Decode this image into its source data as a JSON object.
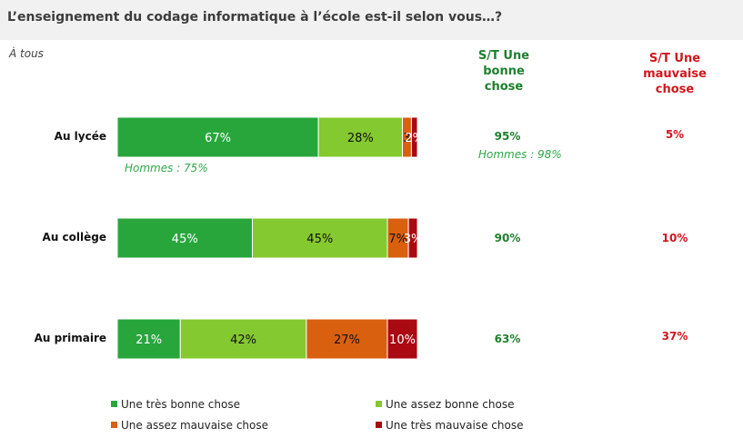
{
  "title": "L’enseignement du codage informatique à l’école est-il selon vous…?",
  "subtitle": "À tous",
  "columns": {
    "good_header": [
      "S/T Une",
      "bonne",
      "chose"
    ],
    "bad_header": [
      "S/T Une",
      "mauvaise",
      "chose"
    ]
  },
  "colors": {
    "tres_bonne": "#28a63c",
    "assez_bonne": "#84c92f",
    "assez_mauvaise": "#d9600f",
    "tres_mauvaise": "#aa0a12",
    "good_text": "#1e7f2e",
    "bad_text": "#d0161e"
  },
  "rows": [
    {
      "label": "Au lycée",
      "good_total": "95%",
      "bad_total": "5%",
      "note_left": "Hommes : 75%",
      "note_right": "Hommes : 98%"
    },
    {
      "label": "Au collège",
      "good_total": "90%",
      "bad_total": "10%"
    },
    {
      "label": "Au primaire",
      "good_total": "63%",
      "bad_total": "37%"
    }
  ],
  "chart_data": {
    "type": "bar",
    "orientation": "horizontal",
    "stacked": true,
    "categories": [
      "Au lycée",
      "Au collège",
      "Au primaire"
    ],
    "series": [
      {
        "name": "Une très bonne chose",
        "values": [
          67,
          45,
          21
        ],
        "labels": [
          "67%",
          "45%",
          "21%"
        ]
      },
      {
        "name": "Une assez bonne chose",
        "values": [
          28,
          45,
          42
        ],
        "labels": [
          "28%",
          "45%",
          "42%"
        ]
      },
      {
        "name": "Une assez mauvaise chose",
        "values": [
          3,
          7,
          27
        ],
        "labels": [
          "3",
          "7%",
          "27%"
        ]
      },
      {
        "name": "Une très mauvaise chose",
        "values": [
          2,
          3,
          10
        ],
        "labels": [
          "2%",
          "3%",
          "10%"
        ]
      }
    ],
    "xlim": [
      0,
      100
    ],
    "legend": "bottom"
  }
}
